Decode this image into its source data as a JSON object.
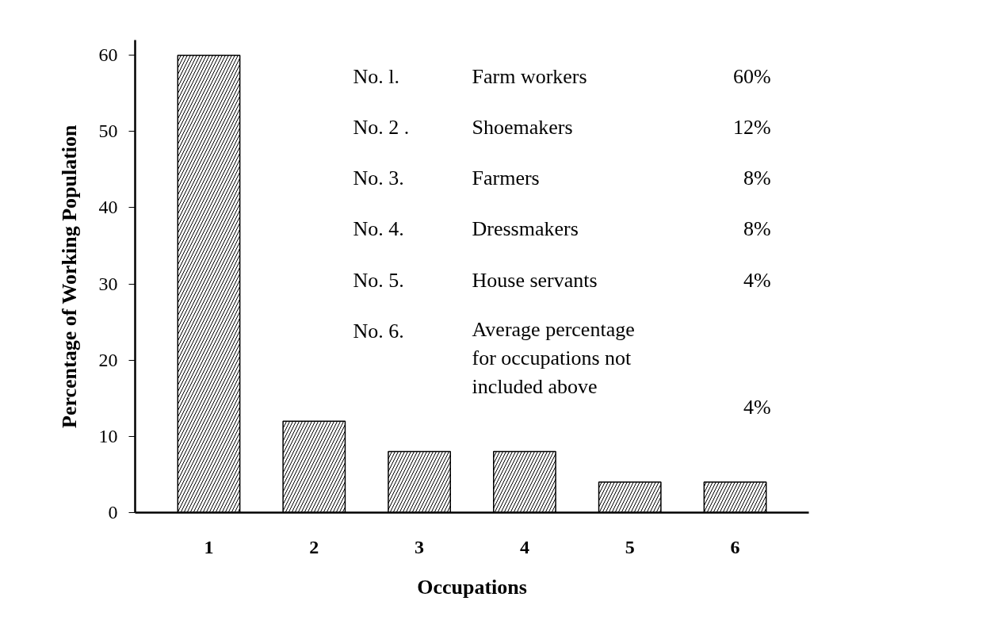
{
  "chart_data": {
    "type": "bar",
    "xlabel": "Occupations",
    "ylabel": "Percentage of Working Population",
    "categories": [
      "1",
      "2",
      "3",
      "4",
      "5",
      "6"
    ],
    "values": [
      60,
      12,
      8,
      8,
      4,
      4
    ],
    "color": "#ffffff",
    "ylim": [
      0,
      62
    ],
    "yticks": [
      0,
      10,
      20,
      30,
      40,
      50,
      60
    ],
    "grid": false,
    "annotations": [
      "No. l.",
      "Farm workers",
      "60%",
      "No. 2 .",
      "Shoemakers",
      "12%",
      "No. 3.",
      "Farmers",
      "8%",
      "No. 4.",
      "Dressmakers",
      "8%",
      "No. 5.",
      "House servants",
      "4%",
      "No. 6.",
      "Average percentage\nfor occupations not\nincluded above",
      "4%"
    ]
  }
}
